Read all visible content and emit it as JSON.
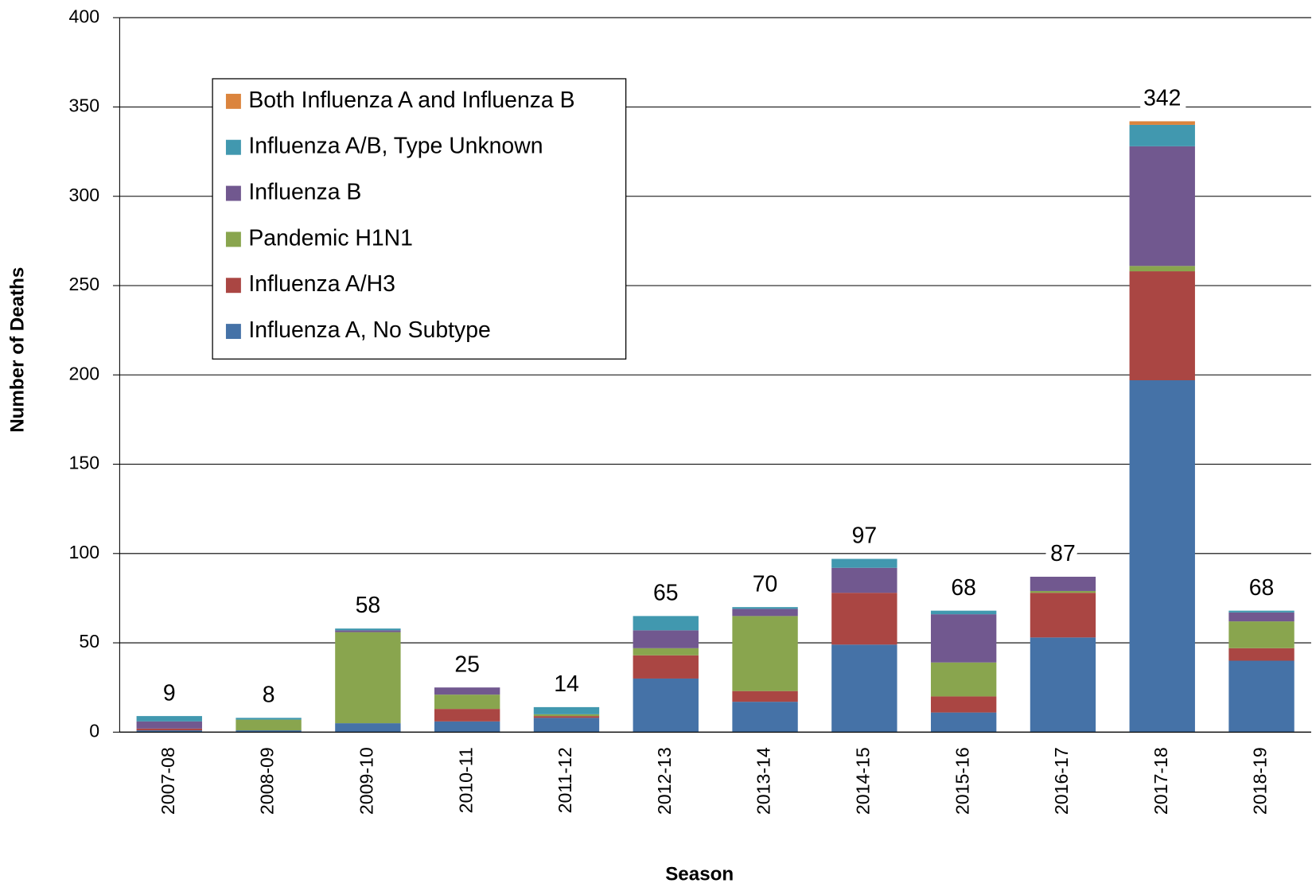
{
  "chart_data": {
    "type": "stacked_bar",
    "x_label": "Season",
    "y_label": "Number of Deaths",
    "categories": [
      "2007-08",
      "2008-09",
      "2009-10",
      "2010-11",
      "2011-12",
      "2012-13",
      "2013-14",
      "2014-15",
      "2015-16",
      "2016-17",
      "2017-18",
      "2018-19"
    ],
    "series": [
      {
        "name": "Influenza A, No Subtype",
        "color": "#4572a7",
        "values": [
          1,
          1,
          5,
          6,
          8,
          30,
          17,
          49,
          11,
          53,
          197,
          40
        ]
      },
      {
        "name": "Influenza A/H3",
        "color": "#aa4643",
        "values": [
          1,
          0,
          0,
          7,
          1,
          13,
          6,
          29,
          9,
          25,
          61,
          7
        ]
      },
      {
        "name": "Pandemic H1N1",
        "color": "#89a54e",
        "values": [
          0,
          6,
          51,
          8,
          1,
          4,
          42,
          0,
          19,
          1,
          3,
          15
        ]
      },
      {
        "name": "Influenza B",
        "color": "#71588f",
        "values": [
          4,
          0,
          1,
          4,
          0,
          10,
          4,
          14,
          27,
          8,
          67,
          5
        ]
      },
      {
        "name": "Influenza A/B, Type Unknown",
        "color": "#4198af",
        "values": [
          3,
          1,
          1,
          0,
          4,
          8,
          1,
          5,
          2,
          0,
          12,
          1
        ]
      },
      {
        "name": "Both Influenza A and Influenza B",
        "color": "#db843d",
        "values": [
          0,
          0,
          0,
          0,
          0,
          0,
          0,
          0,
          0,
          0,
          2,
          0
        ]
      }
    ],
    "totals": [
      9,
      8,
      58,
      25,
      14,
      65,
      70,
      97,
      68,
      87,
      342,
      68
    ],
    "ylim": [
      0,
      400
    ],
    "yticks": [
      0,
      50,
      100,
      150,
      200,
      250,
      300,
      350,
      400
    ],
    "grid": true,
    "legend": "upper left"
  }
}
